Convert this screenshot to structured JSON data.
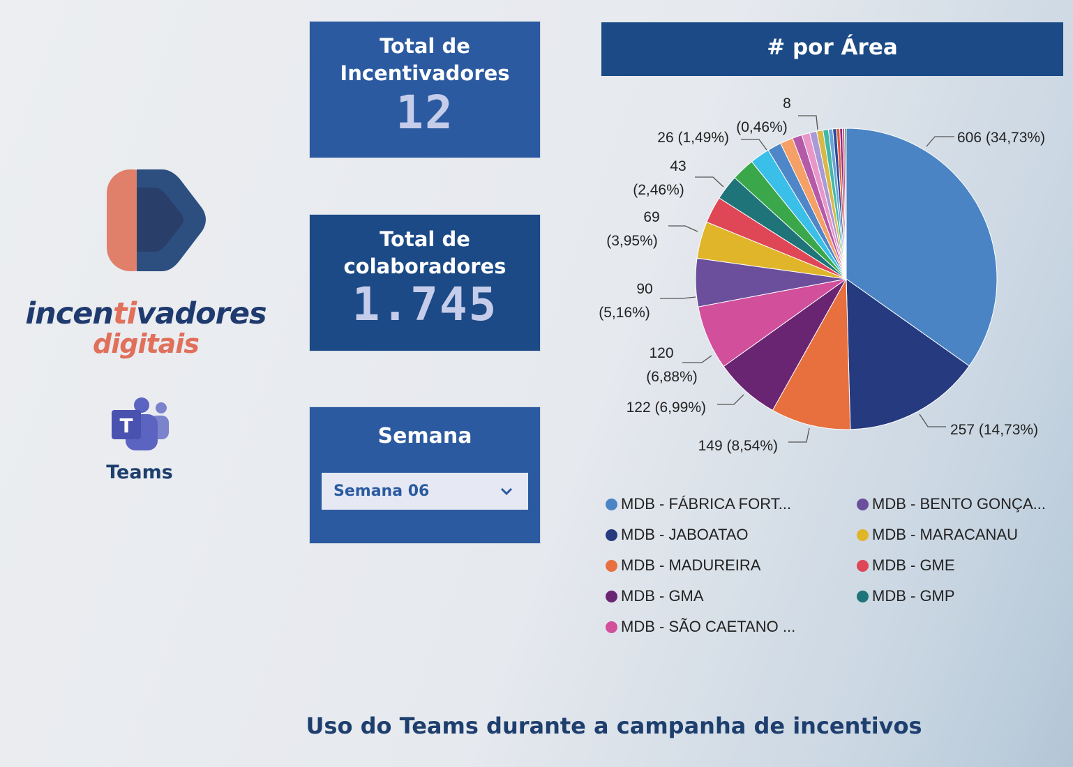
{
  "logo": {
    "word1_pre": "incen",
    "word1_accent": "ti",
    "word1_post": "vadores",
    "word2": "digitais",
    "colors": {
      "coral": "#e0705a",
      "navy": "#1f3a6e",
      "blue": "#2c4f80"
    }
  },
  "teams": {
    "label": "Teams",
    "icon": "microsoft-teams-icon"
  },
  "cards": {
    "incentivadores": {
      "title_line1": "Total de",
      "title_line2": "Incentivadores",
      "value": "12"
    },
    "colaboradores": {
      "title_line1": "Total de",
      "title_line2": "colaboradores",
      "value": "1.745"
    },
    "semana": {
      "title": "Semana",
      "selected": "Semana 06",
      "icon": "chevron-down-icon"
    }
  },
  "chart_title": "# por Área",
  "footer": "Uso do Teams durante a campanha de incentivos",
  "chart_data": {
    "type": "pie",
    "title": "# por Área",
    "total": 1745,
    "slices": [
      {
        "name": "MDB - FÁBRICA FORT...",
        "value": 606,
        "pct": "34,73%",
        "color": "#4a84c4",
        "label": "606 (34,73%)"
      },
      {
        "name": "MDB - JABOATAO",
        "value": 257,
        "pct": "14,73%",
        "color": "#263a80",
        "label": "257 (14,73%)"
      },
      {
        "name": "MDB - MADUREIRA",
        "value": 149,
        "pct": "8,54%",
        "color": "#e86f3e",
        "label": "149 (8,54%)"
      },
      {
        "name": "MDB - GMA",
        "value": 122,
        "pct": "6,99%",
        "color": "#6a2572",
        "label": "122 (6,99%)"
      },
      {
        "name": "MDB - SÃO CAETANO ...",
        "value": 120,
        "pct": "6,88%",
        "color": "#d24f9c",
        "label_line1": "120",
        "label_line2": "(6,88%)"
      },
      {
        "name": "MDB - BENTO GONÇA...",
        "value": 90,
        "pct": "5,16%",
        "color": "#6b4f9c",
        "label_line1": "90",
        "label_line2": "(5,16%)"
      },
      {
        "name": "MDB - MARACANAU",
        "value": 69,
        "pct": "3,95%",
        "color": "#e0b52a",
        "label_line1": "69",
        "label_line2": "(3,95%)"
      },
      {
        "name": "MDB - GME",
        "value": 50,
        "pct": "",
        "color": "#df4656"
      },
      {
        "name": "MDB - GMP",
        "value": 47,
        "pct": "",
        "color": "#1e7479"
      },
      {
        "name": "",
        "value": 43,
        "pct": "2,46%",
        "color": "#3aa84a",
        "label_line1": "43",
        "label_line2": "(2,46%)"
      },
      {
        "name": "",
        "value": 37,
        "pct": "",
        "color": "#3ac0e8"
      },
      {
        "name": "",
        "value": 26,
        "pct": "1,49%",
        "color": "#4f86c8",
        "label": "26 (1,49%)"
      },
      {
        "name": "",
        "value": 24,
        "pct": "",
        "color": "#f4a066"
      },
      {
        "name": "",
        "value": 18,
        "pct": "",
        "color": "#b45aa8"
      },
      {
        "name": "",
        "value": 15,
        "pct": "",
        "color": "#e896c8"
      },
      {
        "name": "",
        "value": 13,
        "pct": "",
        "color": "#a89ad6"
      },
      {
        "name": "",
        "value": 12,
        "pct": "",
        "color": "#d8b84a"
      },
      {
        "name": "",
        "value": 10,
        "pct": "",
        "color": "#42b8a8"
      },
      {
        "name": "",
        "value": 8,
        "pct": "0,46%",
        "color": "#6aa4d8",
        "label_line1": "8",
        "label_line2": "(0,46%)"
      },
      {
        "name": "",
        "value": 7,
        "pct": "",
        "color": "#2a4a9a"
      },
      {
        "name": "",
        "value": 6,
        "pct": "",
        "color": "#e05a3a"
      },
      {
        "name": "",
        "value": 5,
        "pct": "",
        "color": "#8a2a7a"
      },
      {
        "name": "",
        "value": 4,
        "pct": "",
        "color": "#e0468a"
      },
      {
        "name": "",
        "value": 3,
        "pct": "",
        "color": "#3a8a5a"
      }
    ],
    "legend": [
      {
        "label": "MDB - FÁBRICA FORT...",
        "color": "#4a84c4"
      },
      {
        "label": "MDB - BENTO GONÇA...",
        "color": "#6b4f9c"
      },
      {
        "label": "MDB - JABOATAO",
        "color": "#263a80"
      },
      {
        "label": "MDB - MARACANAU",
        "color": "#e0b52a"
      },
      {
        "label": "MDB - MADUREIRA",
        "color": "#e86f3e"
      },
      {
        "label": "MDB - GME",
        "color": "#df4656"
      },
      {
        "label": "MDB - GMA",
        "color": "#6a2572"
      },
      {
        "label": "MDB - GMP",
        "color": "#1e7479"
      },
      {
        "label": "MDB - SÃO CAETANO ...",
        "color": "#d24f9c"
      }
    ]
  }
}
